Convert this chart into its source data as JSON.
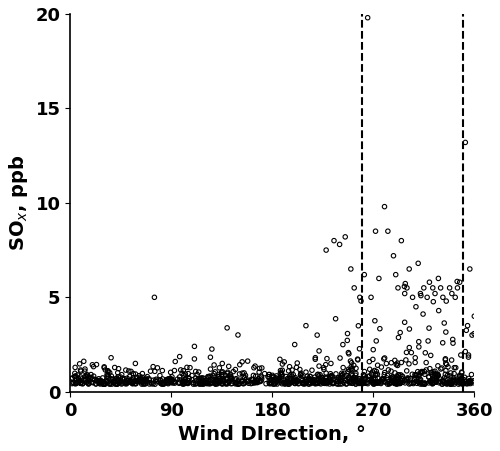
{
  "xlim": [
    0,
    360
  ],
  "ylim": [
    0,
    20
  ],
  "xticks": [
    0,
    90,
    180,
    270,
    360
  ],
  "yticks": [
    0,
    5,
    10,
    15,
    20
  ],
  "xlabel": "Wind DIrection, °",
  "dashed_lines": [
    260,
    350
  ],
  "background_color": "#ffffff",
  "marker_color": "none",
  "marker_edge_color": "#000000",
  "marker_size": 4.5,
  "marker_lw": 0.8,
  "seed": 42,
  "tick_labelsize": 13,
  "label_fontsize": 14,
  "label_fontweight": "bold"
}
